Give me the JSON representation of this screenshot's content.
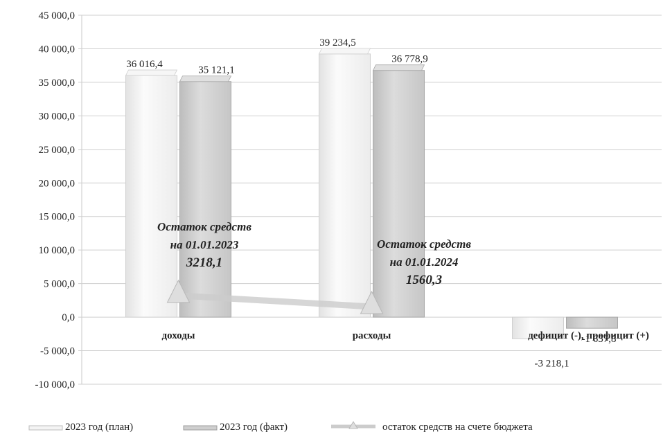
{
  "chart_data": {
    "type": "bar",
    "categories": [
      "доходы",
      "расходы",
      "дефицит (-), профицит (+)"
    ],
    "series": [
      {
        "name": "2023 год (план)",
        "values": [
          36016.4,
          39234.5,
          -3218.1
        ],
        "labels": [
          "36 016,4",
          "39 234,5",
          "-3 218,1"
        ],
        "color": "#f4f4f4"
      },
      {
        "name": "2023 год (факт)",
        "values": [
          35121.1,
          36778.9,
          -1657.8
        ],
        "labels": [
          "35 121,1",
          "36 778,9",
          "-1 657,8"
        ],
        "color": "#d6d6d6"
      }
    ],
    "line_series": {
      "name": "остаток средств на счете бюджета",
      "points": [
        {
          "category": "доходы",
          "value": 3218.1
        },
        {
          "category": "расходы",
          "value": 1560.3
        }
      ],
      "color": "#cccccc",
      "marker": "triangle"
    },
    "annotations": [
      {
        "lines": [
          "Остаток  средств",
          "на 01.01.2023",
          "3218,1"
        ]
      },
      {
        "lines": [
          "Остаток средств",
          "на 01.01.2024",
          "1560,3"
        ]
      }
    ],
    "ylim": [
      -10000,
      45000
    ],
    "yticks": [
      {
        "value": 45000,
        "label": "45 000,0"
      },
      {
        "value": 40000,
        "label": "40 000,0"
      },
      {
        "value": 35000,
        "label": "35 000,0"
      },
      {
        "value": 30000,
        "label": "30 000,0"
      },
      {
        "value": 25000,
        "label": "25 000,0"
      },
      {
        "value": 20000,
        "label": "20 000,0"
      },
      {
        "value": 15000,
        "label": "15 000,0"
      },
      {
        "value": 10000,
        "label": "10 000,0"
      },
      {
        "value": 5000,
        "label": "5 000,0"
      },
      {
        "value": 0,
        "label": "0,0"
      },
      {
        "value": -5000,
        "label": "-5 000,0"
      },
      {
        "value": -10000,
        "label": "-10 000,0"
      }
    ],
    "grid": true,
    "legend_position": "bottom",
    "title": "",
    "xlabel": "",
    "ylabel": ""
  }
}
